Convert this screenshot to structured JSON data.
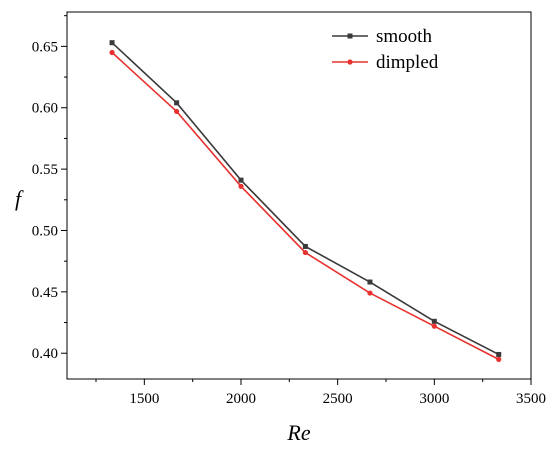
{
  "chart_data": {
    "type": "line",
    "xlabel": "Re",
    "ylabel": "f",
    "xlim": [
      1100,
      3500
    ],
    "ylim": [
      0.379,
      0.678
    ],
    "x_ticks": [
      1500,
      2000,
      2500,
      3000,
      3500
    ],
    "y_ticks": [
      0.4,
      0.45,
      0.5,
      0.55,
      0.6,
      0.65
    ],
    "x_tick_labels": [
      "1500",
      "2000",
      "2500",
      "3000",
      "3500"
    ],
    "y_tick_labels": [
      "0.40",
      "0.45",
      "0.50",
      "0.55",
      "0.60",
      "0.65"
    ],
    "x": [
      1333,
      1667,
      2000,
      2333,
      2667,
      3000,
      3333
    ],
    "series": [
      {
        "name": "smooth",
        "color": "#3a3a3a",
        "marker": "square",
        "values": [
          0.653,
          0.604,
          0.541,
          0.487,
          0.458,
          0.426,
          0.399
        ]
      },
      {
        "name": "dimpled",
        "color": "#e8322f",
        "marker": "circle",
        "values": [
          0.645,
          0.597,
          0.536,
          0.482,
          0.449,
          0.422,
          0.395
        ]
      }
    ],
    "grid": false,
    "legend_position": "top-right"
  }
}
